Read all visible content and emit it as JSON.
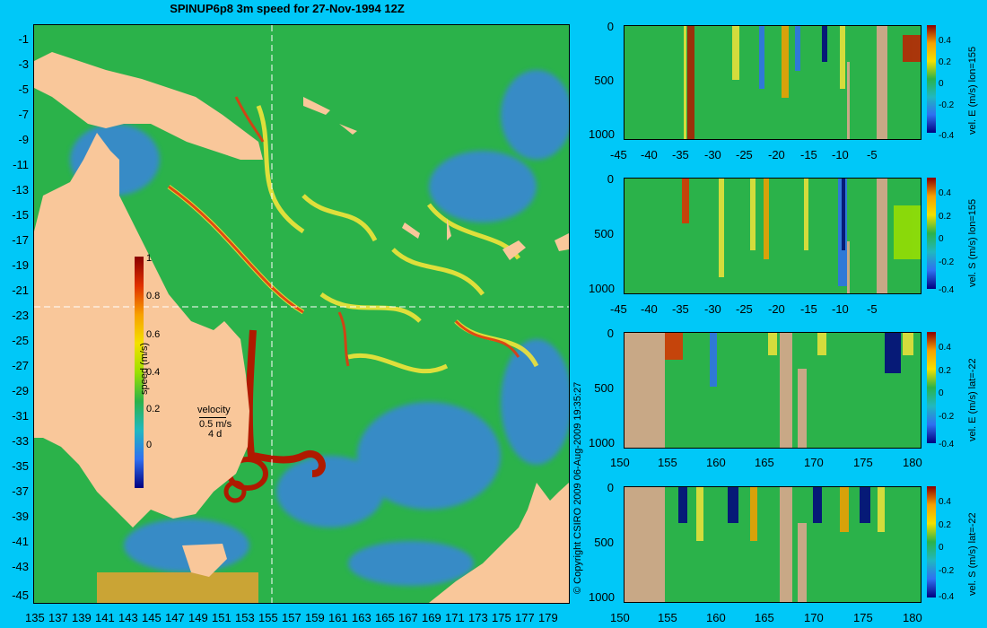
{
  "title": "SPINUP6p8 3m speed for 27-Nov-1994 12Z",
  "colors": {
    "background": "#00c8f8",
    "land": "#f9c79a",
    "bathy_land": "#c8a886",
    "ocean_mid": "#2bb24a"
  },
  "map": {
    "x_ticks": [
      "135",
      "137",
      "139",
      "141",
      "143",
      "145",
      "147",
      "149",
      "151",
      "153",
      "155",
      "157",
      "159",
      "161",
      "163",
      "165",
      "167",
      "169",
      "171",
      "173",
      "175",
      "177",
      "179"
    ],
    "y_ticks": [
      "-1",
      "-3",
      "-5",
      "-7",
      "-9",
      "-11",
      "-13",
      "-15",
      "-17",
      "-19",
      "-21",
      "-23",
      "-25",
      "-27",
      "-29",
      "-31",
      "-33",
      "-35",
      "-37",
      "-39",
      "-41",
      "-43",
      "-45"
    ],
    "colorbar": {
      "label": "speed (m/s)",
      "ticks": [
        "1",
        "0.8",
        "0.6",
        "0.4",
        "0.2",
        "0"
      ]
    },
    "velocity_key": {
      "title": "velocity",
      "speed": "0.5 m/s",
      "duration": "4 d"
    }
  },
  "sections": [
    {
      "id": "velE-lon155",
      "label": "vel. E (m/s) lon=155",
      "x_ticks": [
        "-45",
        "-40",
        "-35",
        "-30",
        "-25",
        "-20",
        "-15",
        "-10",
        "-5"
      ],
      "y_ticks": [
        "0",
        "500",
        "1000"
      ],
      "cb_ticks": [
        "0.4",
        "0.2",
        "0",
        "-0.2",
        "-0.4"
      ]
    },
    {
      "id": "velS-lon155",
      "label": "vel. S (m/s) lon=155",
      "x_ticks": [
        "-45",
        "-40",
        "-35",
        "-30",
        "-25",
        "-20",
        "-15",
        "-10",
        "-5"
      ],
      "y_ticks": [
        "0",
        "500",
        "1000"
      ],
      "cb_ticks": [
        "0.4",
        "0.2",
        "0",
        "-0.2",
        "-0.4"
      ]
    },
    {
      "id": "velE-lat-22",
      "label": "vel. E (m/s) lat=-22",
      "x_ticks": [
        "150",
        "155",
        "160",
        "165",
        "170",
        "175",
        "180"
      ],
      "y_ticks": [
        "0",
        "500",
        "1000"
      ],
      "cb_ticks": [
        "0.4",
        "0.2",
        "0",
        "-0.2",
        "-0.4"
      ]
    },
    {
      "id": "velS-lat-22",
      "label": "vel. S (m/s) lat=-22",
      "x_ticks": [
        "150",
        "155",
        "160",
        "165",
        "170",
        "175",
        "180"
      ],
      "y_ticks": [
        "0",
        "500",
        "1000"
      ],
      "cb_ticks": [
        "0.4",
        "0.2",
        "0",
        "-0.2",
        "-0.4"
      ]
    }
  ],
  "copyright": "© Copyright CSIRO 2009   06-Aug-2009 19:35:27"
}
